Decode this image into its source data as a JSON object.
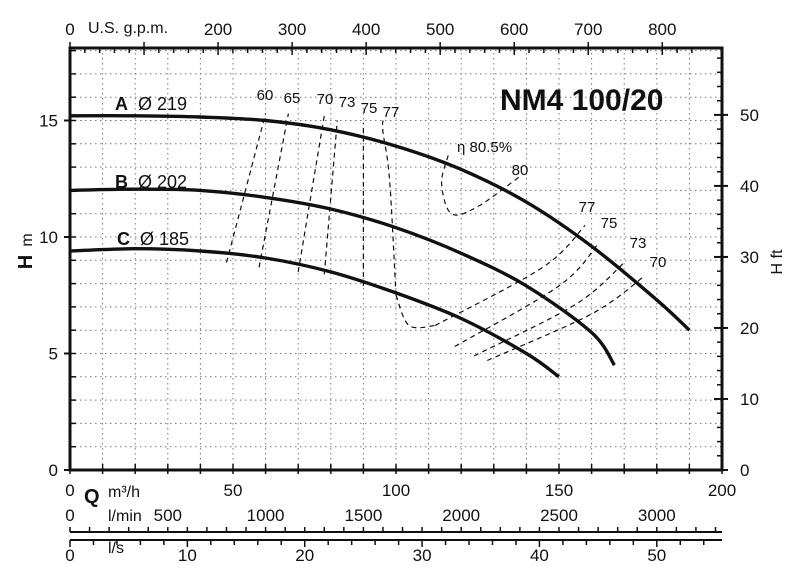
{
  "chart_data": {
    "type": "line",
    "title": "NM4 100/20",
    "xlabel": "Q",
    "x_unit_m3h": "m³/h",
    "x_unit_lmin": "l/min",
    "x_unit_ls": "l/s",
    "x_unit_gpm": "U.S. g.p.m.",
    "ylabel_left": "H",
    "y_unit_left": "m",
    "ylabel_right": "H ft",
    "xlim_m3h": [
      0,
      200
    ],
    "ylim_m": [
      0,
      19
    ],
    "grid": true,
    "ticks_m3h": [
      "0",
      "50",
      "100",
      "150",
      "200"
    ],
    "ticks_m": [
      "0",
      "5",
      "10",
      "15"
    ],
    "ticks_ft": [
      "0",
      "10",
      "20",
      "30",
      "40",
      "50"
    ],
    "ticks_gpm": [
      "0",
      "200",
      "300",
      "400",
      "500",
      "600",
      "700",
      "800"
    ],
    "ticks_lmin": [
      "0",
      "500",
      "1000",
      "1500",
      "2000",
      "2500",
      "3000"
    ],
    "ticks_ls": [
      "0",
      "10",
      "20",
      "30",
      "40",
      "50"
    ],
    "series": [
      {
        "name": "A",
        "label_letter": "A",
        "label_diameter": "Ø 219",
        "x": [
          0,
          20,
          40,
          60,
          80,
          100,
          120,
          140,
          160,
          180,
          190
        ],
        "y": [
          15.2,
          15.2,
          15.15,
          15.0,
          14.6,
          13.9,
          12.9,
          11.5,
          9.6,
          7.3,
          6.0
        ]
      },
      {
        "name": "B",
        "label_letter": "B",
        "label_diameter": "Ø 202",
        "x": [
          0,
          20,
          40,
          60,
          80,
          100,
          120,
          140,
          160,
          167
        ],
        "y": [
          12.0,
          12.05,
          12.0,
          11.7,
          11.2,
          10.4,
          9.3,
          7.9,
          5.9,
          4.5
        ]
      },
      {
        "name": "C",
        "label_letter": "C",
        "label_diameter": "Ø 185",
        "x": [
          0,
          20,
          40,
          60,
          80,
          100,
          120,
          140,
          150
        ],
        "y": [
          9.4,
          9.5,
          9.4,
          9.1,
          8.5,
          7.6,
          6.5,
          5.0,
          4.0
        ]
      }
    ],
    "efficiency_labels": [
      "60",
      "65",
      "70",
      "73",
      "75",
      "77",
      "η 80.5%",
      "80",
      "77",
      "75",
      "73",
      "70"
    ],
    "efficiency_lines_left": [
      {
        "label": "60",
        "x": [
          48,
          60
        ],
        "y": [
          8.9,
          15.3
        ]
      },
      {
        "label": "65",
        "x": [
          58,
          67
        ],
        "y": [
          8.7,
          15.3
        ]
      },
      {
        "label": "70",
        "x": [
          70,
          78
        ],
        "y": [
          8.5,
          15.2
        ]
      },
      {
        "label": "73",
        "x": [
          78,
          82
        ],
        "y": [
          8.4,
          15.0
        ]
      },
      {
        "label": "75",
        "x": [
          90,
          90
        ],
        "y": [
          7.9,
          14.9
        ]
      },
      {
        "label": "77",
        "x": [
          100,
          98,
          96,
          96
        ],
        "y": [
          7.5,
          12.5,
          14.5,
          15.0
        ]
      }
    ],
    "efficiency_lines_right": [
      {
        "label": "77",
        "x": [
          112,
          145,
          158
        ],
        "y": [
          6.2,
          8.7,
          10.5
        ]
      },
      {
        "label": "75",
        "x": [
          118,
          150,
          162
        ],
        "y": [
          5.3,
          7.9,
          9.7
        ]
      },
      {
        "label": "73",
        "x": [
          124,
          155,
          170
        ],
        "y": [
          4.9,
          7.1,
          8.9
        ]
      },
      {
        "label": "70",
        "x": [
          128,
          160,
          176
        ],
        "y": [
          4.7,
          6.7,
          8.3
        ]
      }
    ]
  }
}
